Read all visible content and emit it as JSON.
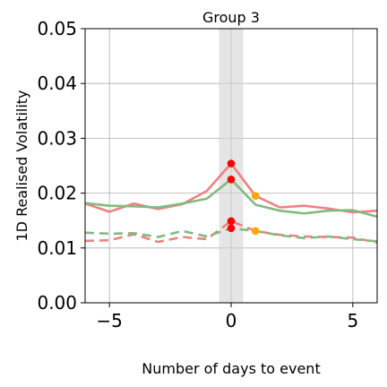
{
  "chart_data": {
    "type": "line",
    "title": "Group 3",
    "xlabel": "Number of days to event",
    "ylabel": "1D Realised Volatility",
    "xlim": [
      -6,
      6
    ],
    "ylim": [
      0,
      0.05
    ],
    "xticks": [
      -5,
      0,
      5
    ],
    "xtick_labels": [
      "−5",
      "0",
      "5"
    ],
    "yticks": [
      0,
      0.01,
      0.02,
      0.03,
      0.04,
      0.05
    ],
    "ytick_labels": [
      "0.00",
      "0.01",
      "0.02",
      "0.03",
      "0.04",
      "0.05"
    ],
    "grid": true,
    "event_band": [
      -0.5,
      0.5
    ],
    "x": [
      -6,
      -5,
      -4,
      -3,
      -2,
      -1,
      0,
      1,
      2,
      3,
      4,
      5,
      6
    ],
    "series": [
      {
        "color": "#f08080",
        "style": "solid",
        "values": [
          0.0181,
          0.0166,
          0.0181,
          0.0171,
          0.018,
          0.0204,
          0.0254,
          0.0195,
          0.0174,
          0.0177,
          0.0172,
          0.0165,
          0.0168
        ]
      },
      {
        "color": "#80bb80",
        "style": "solid",
        "values": [
          0.0182,
          0.0177,
          0.0176,
          0.0174,
          0.0181,
          0.019,
          0.0225,
          0.0179,
          0.0168,
          0.0163,
          0.0168,
          0.0169,
          0.0157
        ]
      },
      {
        "color": "#f08080",
        "style": "dashed",
        "values": [
          0.0113,
          0.0114,
          0.0125,
          0.0111,
          0.012,
          0.0116,
          0.0149,
          0.0131,
          0.0124,
          0.0121,
          0.012,
          0.0119,
          0.011
        ]
      },
      {
        "color": "#80bb80",
        "style": "dashed",
        "values": [
          0.0128,
          0.0126,
          0.0127,
          0.012,
          0.0131,
          0.0121,
          0.0136,
          0.0131,
          0.0123,
          0.0118,
          0.0121,
          0.0116,
          0.0112
        ]
      }
    ],
    "markers": [
      {
        "x": 0,
        "y": 0.0254,
        "color": "#ff0000"
      },
      {
        "x": 0,
        "y": 0.0225,
        "color": "#ff0000"
      },
      {
        "x": 0,
        "y": 0.0149,
        "color": "#ff0000"
      },
      {
        "x": 0,
        "y": 0.0136,
        "color": "#ff0000"
      },
      {
        "x": 1,
        "y": 0.0195,
        "color": "#ffa500"
      },
      {
        "x": 1,
        "y": 0.0131,
        "color": "#ffa500"
      }
    ]
  }
}
